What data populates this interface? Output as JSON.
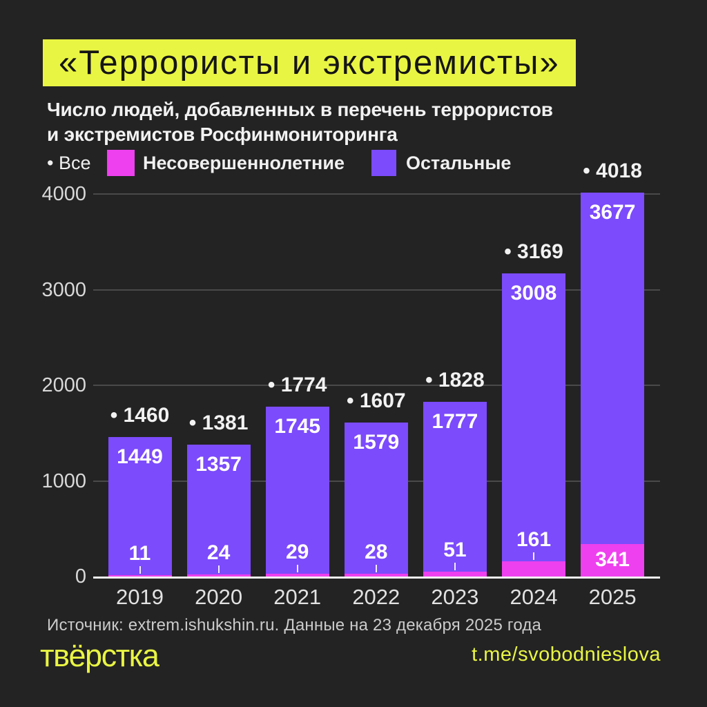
{
  "title": "«Террористы и экстремисты»",
  "subtitle": {
    "line1": "Число людей, добавленных в перечень террористов",
    "line2": "и экстремистов Росфинмониторинга"
  },
  "legend": {
    "all": "• Все",
    "minors": "Несовершеннолетние",
    "others": "Остальные"
  },
  "colors": {
    "background": "#232323",
    "accent_yellow": "#e9f543",
    "minors_magenta": "#ee40ee",
    "others_purple": "#7c4bfb",
    "gridline": "#4a4a4a",
    "axis_line": "#f2f2f2",
    "title_text": "#151515"
  },
  "chart_data": {
    "type": "bar",
    "stacked": true,
    "title": "«Террористы и экстремисты»",
    "subtitle": "Число людей, добавленных в перечень террористов и экстремистов Росфинмониторинга",
    "categories": [
      "2019",
      "2020",
      "2021",
      "2022",
      "2023",
      "2024",
      "2025"
    ],
    "series": [
      {
        "name": "Несовершеннолетние",
        "color": "#ee40ee",
        "values": [
          11,
          24,
          29,
          28,
          51,
          161,
          341
        ]
      },
      {
        "name": "Остальные",
        "color": "#7c4bfb",
        "values": [
          1449,
          1357,
          1745,
          1579,
          1777,
          3008,
          3677
        ]
      }
    ],
    "totals": [
      1460,
      1381,
      1774,
      1607,
      1828,
      3169,
      4018
    ],
    "total_bullet": "•",
    "yticks": [
      0,
      1000,
      2000,
      3000,
      4000
    ],
    "ylim": [
      0,
      4018
    ],
    "grid": "horizontal",
    "legend_position": "top"
  },
  "source": "Источник: extrem.ishukshin.ru. Данные на 23 декабря 2025 года",
  "footer": {
    "logo": "твёрстка",
    "link": "t.me/svobodnieslova"
  }
}
